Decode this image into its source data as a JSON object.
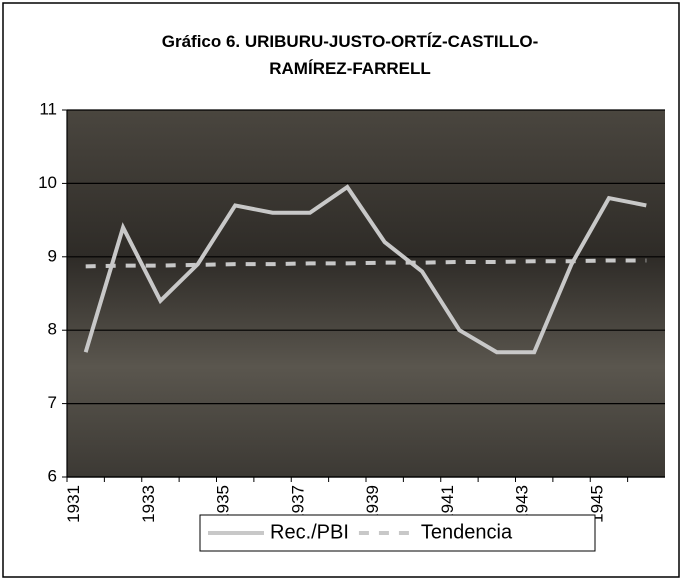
{
  "chart_data": {
    "type": "line",
    "title": "Gráfico 6. URIBURU-JUSTO-ORTÍZ-CASTILLO-RAMÍREZ-FARRELL",
    "categories": [
      "1931",
      null,
      "1933",
      null,
      "1935",
      null,
      "1937",
      null,
      "1939",
      null,
      "1941",
      null,
      "1943",
      null,
      "1945",
      null
    ],
    "series": [
      {
        "name": "Rec./PBI",
        "color": "#c8c8c8",
        "dash": false,
        "values": [
          7.7,
          9.4,
          8.4,
          8.9,
          9.7,
          9.6,
          9.6,
          9.95,
          9.2,
          8.8,
          8.0,
          7.7,
          7.7,
          8.9,
          9.8,
          9.7
        ]
      },
      {
        "name": "Tendencia",
        "color": "#c8c8c8",
        "dash": true,
        "values": [
          8.87,
          8.88,
          8.88,
          8.89,
          8.9,
          8.9,
          8.91,
          8.91,
          8.92,
          8.92,
          8.93,
          8.93,
          8.94,
          8.94,
          8.95,
          8.95
        ]
      }
    ],
    "ylim": [
      6,
      11
    ],
    "yticks": [
      6,
      7,
      8,
      9,
      10,
      11
    ],
    "grid": true,
    "legend": "bottom"
  }
}
